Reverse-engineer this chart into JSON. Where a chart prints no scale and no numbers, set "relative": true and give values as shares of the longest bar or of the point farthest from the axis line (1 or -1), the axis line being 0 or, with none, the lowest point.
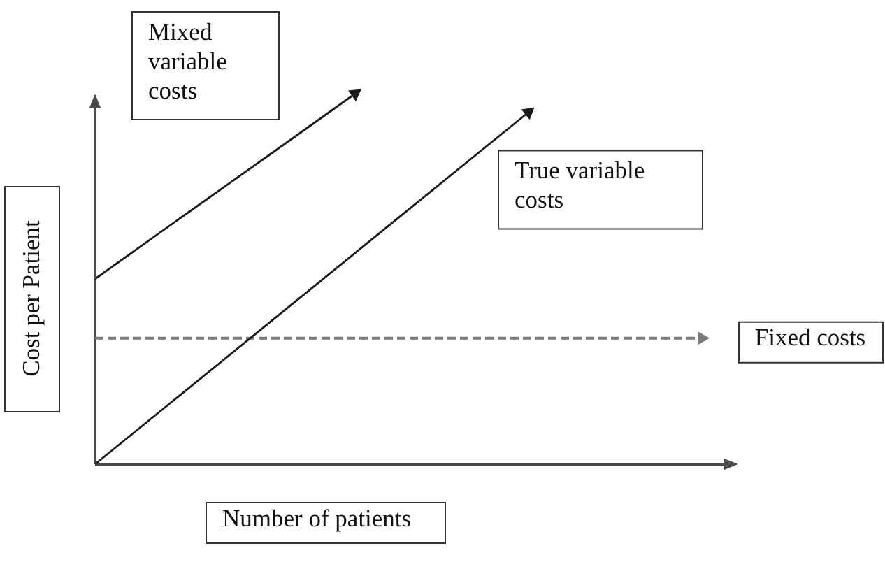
{
  "chart_data": {
    "type": "line",
    "relative": true,
    "xlabel": "Number of patients",
    "ylabel": "Cost per Patient",
    "categories": [
      null,
      null,
      null,
      null,
      null,
      null,
      null,
      null
    ],
    "tick_labels": false,
    "legend": false,
    "grid": false,
    "marker": "none",
    "series": [
      {
        "name": "Mixed variable costs",
        "color": "#1a1a1a",
        "values": [
          0.5,
          0.667,
          0.833,
          1,
          null,
          null,
          null,
          null
        ]
      },
      {
        "name": "True variable costs",
        "color": "#1a1a1a",
        "values": [
          0,
          0.19,
          0.38,
          0.57,
          0.76,
          0.95,
          null,
          null
        ]
      },
      {
        "name": "Fixed costs",
        "color": "#7a7a7a",
        "values": [
          0.34,
          0.34,
          0.34,
          0.34,
          0.34,
          0.34,
          0.34,
          0.34
        ],
        "line_style": "dashed"
      }
    ]
  }
}
